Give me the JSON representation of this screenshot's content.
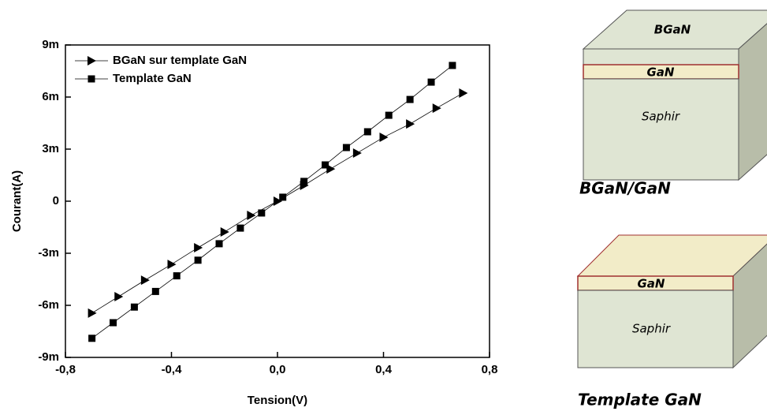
{
  "chart_data": {
    "type": "line",
    "x_label": "Tension(V)",
    "y_label": "Courant(A)",
    "xlim": [
      -0.8,
      0.8
    ],
    "xticks": [
      {
        "value": -0.8,
        "label": "-0,8"
      },
      {
        "value": -0.4,
        "label": "-0,4"
      },
      {
        "value": 0,
        "label": "0,0"
      },
      {
        "value": 0.4,
        "label": "0,4"
      },
      {
        "value": 0.8,
        "label": "0,8"
      }
    ],
    "ylim": [
      -0.009,
      0.009
    ],
    "yticks": [
      {
        "value": -0.009,
        "label": "-9m"
      },
      {
        "value": -0.006,
        "label": "-6m"
      },
      {
        "value": -0.003,
        "label": "-3m"
      },
      {
        "value": 0,
        "label": "0"
      },
      {
        "value": 0.003,
        "label": "3m"
      },
      {
        "value": 0.006,
        "label": "6m"
      },
      {
        "value": 0.009,
        "label": "9m"
      }
    ],
    "legend": "top-left",
    "series": [
      {
        "name": "BGaN sur template GaN",
        "color": "#000000",
        "marker": "triangle",
        "x": [
          -0.7,
          -0.6,
          -0.5,
          -0.4,
          -0.3,
          -0.2,
          -0.1,
          0,
          0.1,
          0.2,
          0.3,
          0.4,
          0.5,
          0.6,
          0.7
        ],
        "values": [
          -0.00645,
          -0.0055,
          -0.00455,
          -0.00364,
          -0.00268,
          -0.00177,
          -0.00082,
          0,
          0.00091,
          0.00186,
          0.00277,
          0.00368,
          0.00445,
          0.00536,
          0.00623
        ]
      },
      {
        "name": "Template GaN",
        "color": "#000000",
        "marker": "square",
        "x": [
          -0.7,
          -0.62,
          -0.54,
          -0.46,
          -0.38,
          -0.3,
          -0.22,
          -0.14,
          -0.06,
          0.02,
          0.1,
          0.18,
          0.26,
          0.34,
          0.42,
          0.5,
          0.58,
          0.66
        ],
        "values": [
          -0.0079,
          -0.007,
          -0.0061,
          -0.0052,
          -0.0043,
          -0.0034,
          -0.00245,
          -0.00155,
          -0.00068,
          0.00023,
          0.00114,
          0.00209,
          0.00309,
          0.004,
          0.00495,
          0.00586,
          0.00686,
          0.00782
        ]
      }
    ]
  },
  "diagrams": [
    {
      "layers": [
        "BGaN",
        "GaN",
        "Saphir"
      ],
      "caption": "BGaN/GaN"
    },
    {
      "layers": [
        "GaN",
        "Saphir"
      ],
      "caption": "Template GaN"
    }
  ]
}
